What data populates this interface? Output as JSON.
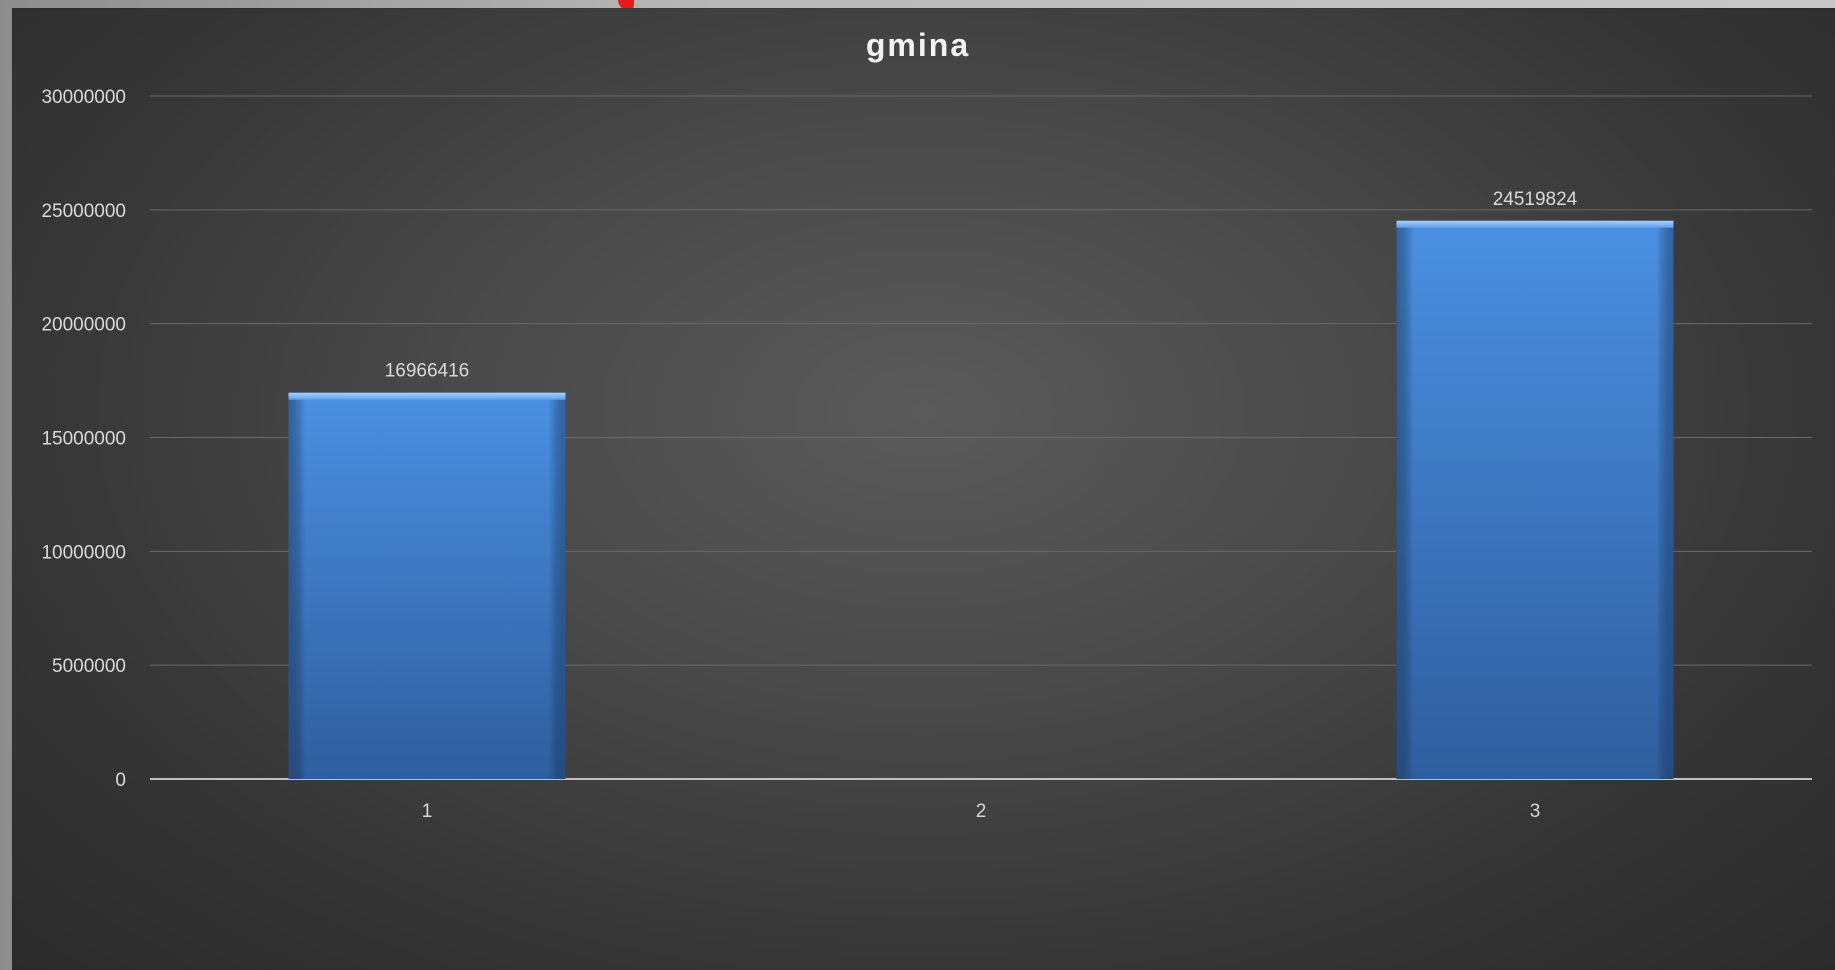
{
  "chart_data": {
    "type": "bar",
    "title": "gmina",
    "categories": [
      "1",
      "2",
      "3"
    ],
    "values": [
      16966416,
      null,
      24519824
    ],
    "data_labels": [
      "16966416",
      "",
      "24519824"
    ],
    "ylim": [
      0,
      30000000
    ],
    "yticks": [
      0,
      5000000,
      10000000,
      15000000,
      20000000,
      25000000,
      30000000
    ],
    "ytick_labels": [
      "0",
      "5000000",
      "10000000",
      "15000000",
      "20000000",
      "25000000",
      "30000000"
    ],
    "xlabel": "",
    "ylabel": "",
    "grid": true,
    "legend": "none",
    "colors": {
      "bar_top": "#4a90e2",
      "bar_bottom": "#2f5e9e",
      "text": "#d9d9d9",
      "title": "#f2f2f2",
      "grid": "#6a6a6a",
      "axis": "#bfbfbf"
    }
  }
}
